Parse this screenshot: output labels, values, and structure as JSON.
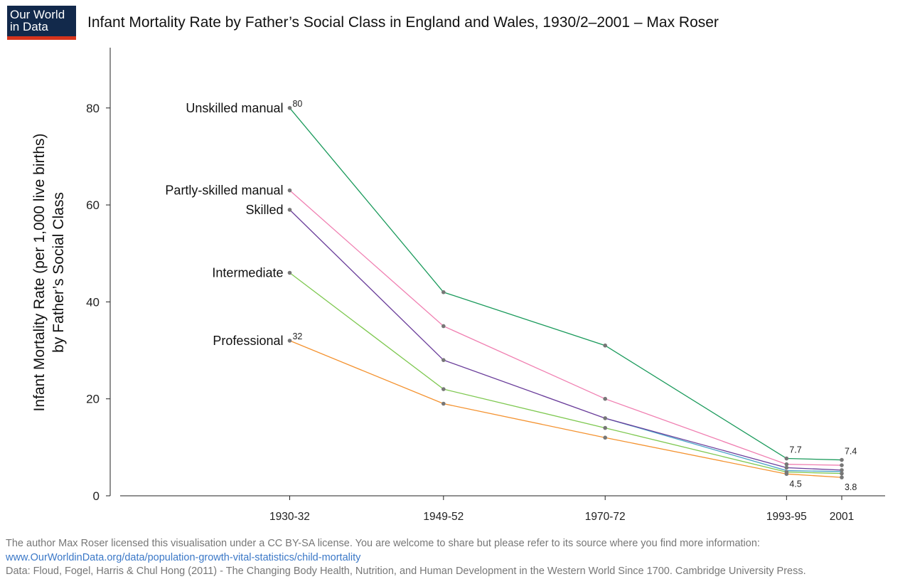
{
  "logo": {
    "line1": "Our World",
    "line2": "in Data"
  },
  "title": "Infant Mortality Rate by Father’s Social Class in England and Wales, 1930/2–2001 – Max Roser",
  "footer": {
    "license_text": "The author Max Roser licensed this visualisation under a CC BY-SA license. You are welcome to share but please refer to its source where you find more information: ",
    "link": "www.OurWorldinData.org/data/population-growth-vital-statistics/child-mortality",
    "source": "Data: Floud, Fogel, Harris & Chul Hong (2011) - The Changing Body Health, Nutrition, and Human Development in the Western World Since 1700. Cambridge University Press."
  },
  "chart_data": {
    "type": "line",
    "title": "Infant Mortality Rate by Father’s Social Class in England and Wales, 1930/2–2001 – Max Roser",
    "ylabel_line1": "Infant Mortality Rate (per 1,000 live births)",
    "ylabel_line2": "by Father’s Social Class",
    "xlabel": "",
    "categories": [
      "1930-32",
      "1949-52",
      "1970-72",
      "1993-95",
      "2001"
    ],
    "x": [
      1931,
      1950.5,
      1971,
      1994,
      2001
    ],
    "xlim": [
      1909.5,
      2006.5
    ],
    "ylim": [
      0,
      92
    ],
    "yticks": [
      0,
      20,
      40,
      60,
      80
    ],
    "grid": false,
    "legend": "inline labels at left of series",
    "series": [
      {
        "name": "Unskilled manual",
        "color": "#1a9a5b",
        "values": [
          80,
          42,
          31,
          7.7,
          7.4
        ]
      },
      {
        "name": "Partly-skilled manual",
        "color": "#f07fb1",
        "values": [
          63,
          35,
          20,
          6.5,
          6.3
        ]
      },
      {
        "name": "Skilled",
        "color": "#6a3d9a",
        "values": [
          59,
          28,
          16,
          5.8,
          5.3
        ]
      },
      {
        "name": "Intermediate",
        "color": "#7ec850",
        "values": [
          46,
          22,
          14,
          4.9,
          4.6
        ]
      },
      {
        "name": "Professional",
        "color": "#f4922f",
        "values": [
          32,
          19,
          12,
          4.5,
          3.8
        ]
      }
    ],
    "extra_line": {
      "color": "#4aa3c8",
      "values": [
        16,
        5.2,
        5.0
      ]
    },
    "annotations": [
      {
        "series": 0,
        "point": 0,
        "text": "80"
      },
      {
        "series": 4,
        "point": 0,
        "text": "32"
      },
      {
        "series": 0,
        "point": 3,
        "text": "7.7"
      },
      {
        "series": 0,
        "point": 4,
        "text": "7.4"
      },
      {
        "series": 4,
        "point": 3,
        "text": "4.5"
      },
      {
        "series": 4,
        "point": 4,
        "text": "3.8"
      }
    ],
    "marker_color": "#777777",
    "axis_color": "#222222"
  }
}
